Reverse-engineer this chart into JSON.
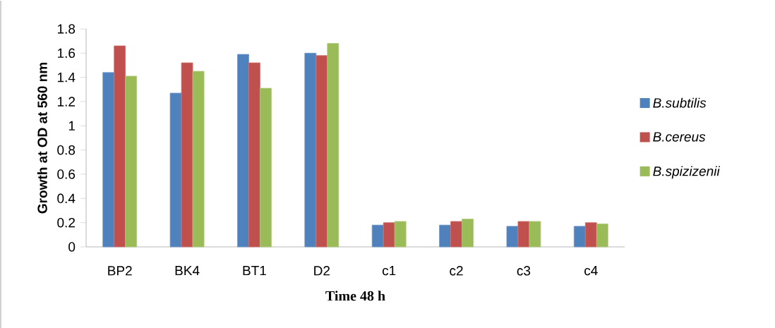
{
  "chart_data": {
    "type": "bar",
    "xlabel": "Time 48 h",
    "ylabel": "Growth at OD at 560 nm",
    "categories": [
      "BP2",
      "BK4",
      "BT1",
      "D2",
      "c1",
      "c2",
      "c3",
      "c4"
    ],
    "series": [
      {
        "name": "*B.subtilis*",
        "color": "#4f81bd",
        "values": [
          1.44,
          1.27,
          1.59,
          1.6,
          0.18,
          0.18,
          0.17,
          0.17
        ]
      },
      {
        "name": "*B.cereus*",
        "color": "#c0504d",
        "values": [
          1.66,
          1.52,
          1.52,
          1.58,
          0.2,
          0.21,
          0.21,
          0.2
        ]
      },
      {
        "name": "*B.spizizenii*",
        "color": "#9bbb59",
        "values": [
          1.41,
          1.45,
          1.31,
          1.68,
          0.21,
          0.23,
          0.21,
          0.19
        ]
      }
    ],
    "ylim": [
      0,
      1.8
    ],
    "yticks": [
      0,
      0.2,
      0.4,
      0.6,
      0.8,
      1,
      1.2,
      1.4,
      1.6,
      1.8
    ],
    "grid": false,
    "legend": "right"
  }
}
